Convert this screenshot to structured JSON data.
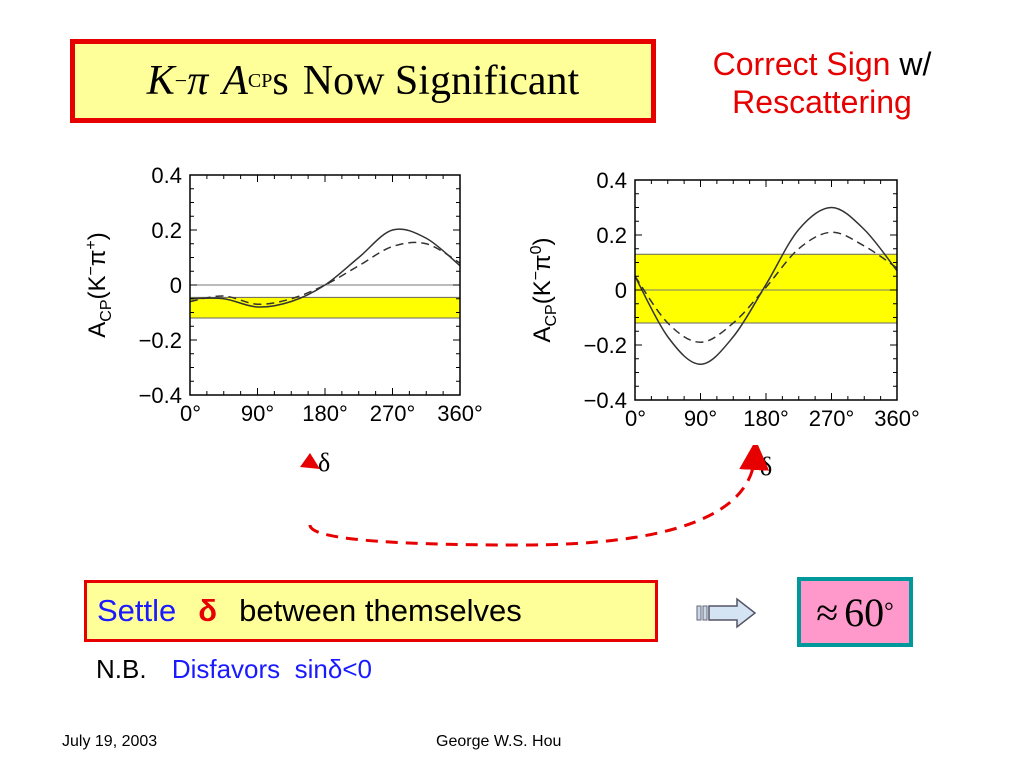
{
  "slide": {
    "title": {
      "k": "K",
      "k_sup": "−",
      "pi": "π",
      "a": "A",
      "a_sub": "CP",
      "s": "s",
      "text": "Now Significant"
    },
    "correct_sign": {
      "line1_red": "Correct Sign",
      "line1_black": "w/",
      "line2_red": "Rescattering"
    },
    "delta_symbol": "δ",
    "settle": {
      "word": "Settle",
      "delta": "δ",
      "rest": "between themselves"
    },
    "result": {
      "approx": "≈",
      "value": "60",
      "degree": "°"
    },
    "nb": {
      "prefix": "N.B.",
      "text": "Disfavors  sinδ<0"
    },
    "footer": {
      "date": "July 19, 2003",
      "author": "George W.S. Hou"
    },
    "colors": {
      "title_border": "#e60000",
      "box_fill": "#ffff99",
      "band": "#ffff00",
      "blue_text": "#1a1aff",
      "result_fill": "#ff99cc",
      "result_border": "#00999b",
      "arrow_dash": "#e60000"
    }
  },
  "chart_data": [
    {
      "type": "line",
      "ylabel": "A_CP(K−π+)",
      "xlabel": "δ",
      "x_ticks": [
        "0°",
        "90°",
        "180°",
        "270°",
        "360°"
      ],
      "y_ticks": [
        "0.4",
        "0.2",
        "0",
        "−0.2",
        "−0.4"
      ],
      "xlim": [
        0,
        360
      ],
      "ylim": [
        -0.4,
        0.4
      ],
      "band": [
        -0.12,
        -0.045
      ],
      "series": [
        {
          "style": "solid",
          "x": [
            0,
            45,
            90,
            135,
            180,
            225,
            270,
            315,
            360
          ],
          "y": [
            -0.05,
            -0.05,
            -0.08,
            -0.06,
            0.0,
            0.1,
            0.2,
            0.17,
            0.07
          ]
        },
        {
          "style": "dashed",
          "x": [
            0,
            45,
            90,
            135,
            180,
            225,
            270,
            315,
            360
          ],
          "y": [
            -0.06,
            -0.04,
            -0.07,
            -0.05,
            0.0,
            0.07,
            0.14,
            0.15,
            0.08
          ]
        }
      ]
    },
    {
      "type": "line",
      "ylabel": "A_CP(K−π0)",
      "xlabel": "δ",
      "x_ticks": [
        "0°",
        "90°",
        "180°",
        "270°",
        "360°"
      ],
      "y_ticks": [
        "0.4",
        "0.2",
        "0",
        "−0.2",
        "−0.4"
      ],
      "xlim": [
        0,
        360
      ],
      "ylim": [
        -0.4,
        0.4
      ],
      "band": [
        -0.12,
        0.13
      ],
      "series": [
        {
          "style": "solid",
          "x": [
            0,
            45,
            90,
            135,
            180,
            225,
            270,
            315,
            360
          ],
          "y": [
            0.05,
            -0.17,
            -0.27,
            -0.17,
            0.02,
            0.22,
            0.3,
            0.22,
            0.07
          ]
        },
        {
          "style": "dashed",
          "x": [
            0,
            45,
            90,
            135,
            180,
            225,
            270,
            315,
            360
          ],
          "y": [
            0.05,
            -0.12,
            -0.19,
            -0.12,
            0.01,
            0.15,
            0.21,
            0.16,
            0.08
          ]
        }
      ]
    }
  ]
}
